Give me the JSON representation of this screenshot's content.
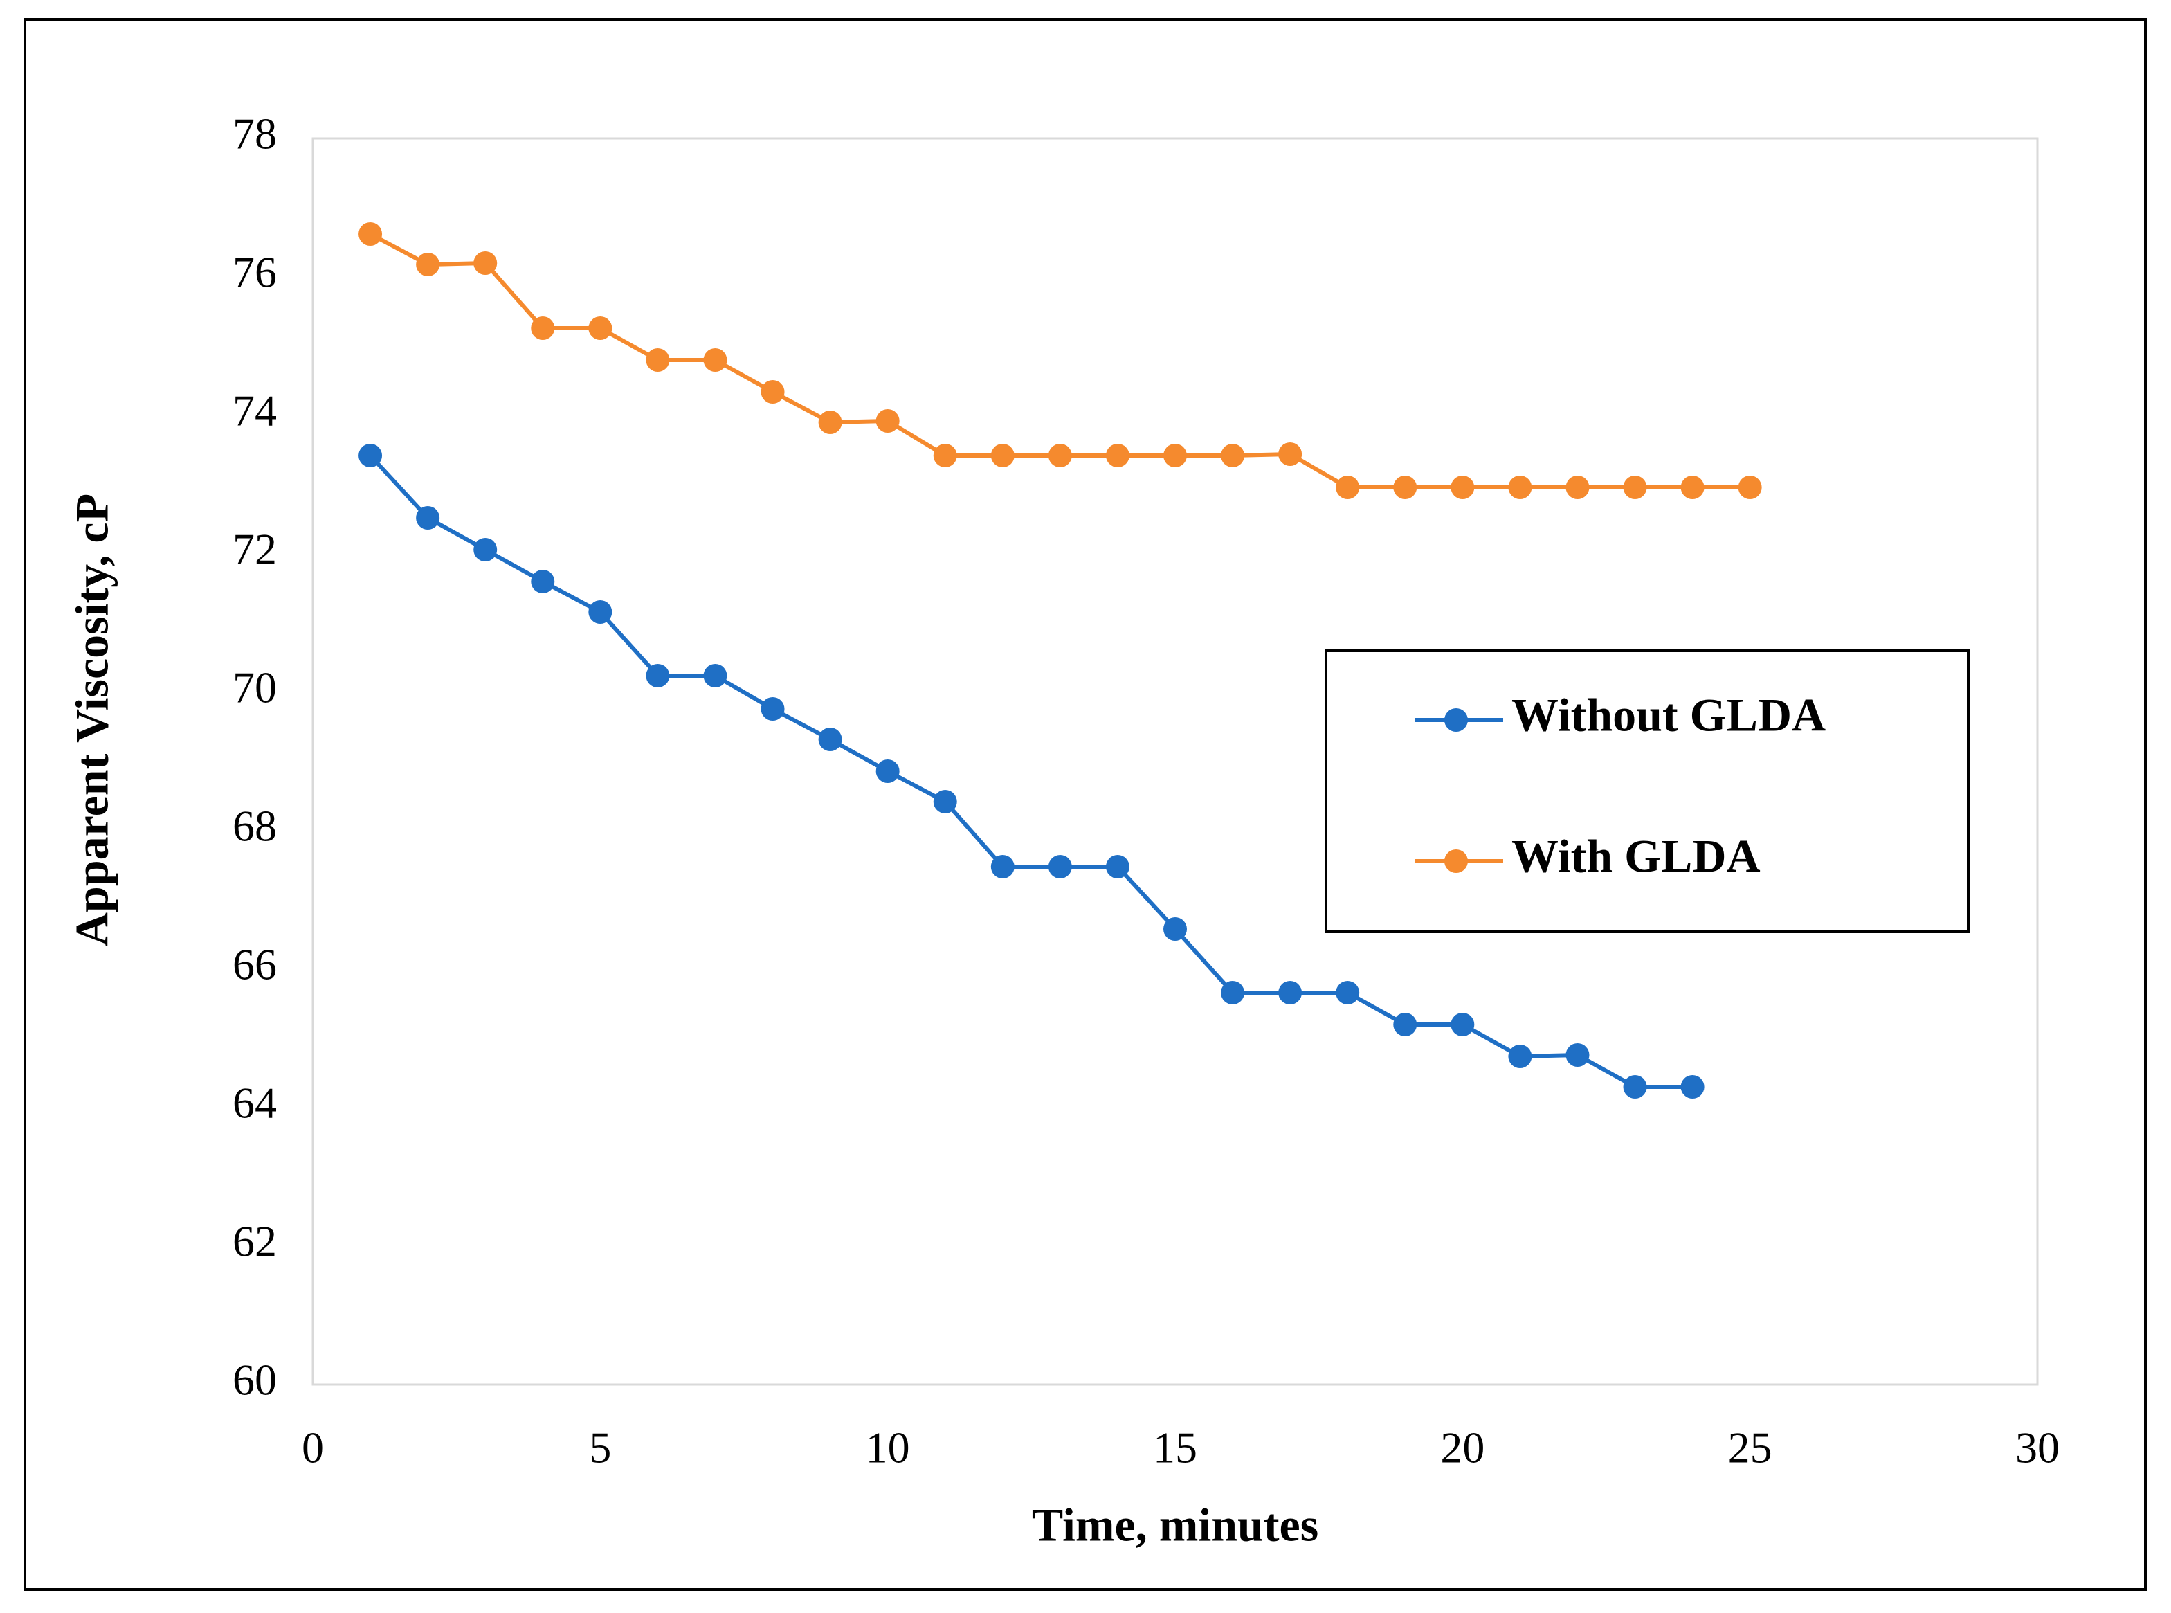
{
  "chart_data": {
    "type": "line",
    "xlabel": "Time, minutes",
    "ylabel": "Apparent Viscosity, cP",
    "series": [
      {
        "name": "Without GLDA",
        "color": "#1f6fc5",
        "x": [
          1,
          2,
          3,
          4,
          5,
          6,
          7,
          8,
          9,
          10,
          11,
          12,
          13,
          14,
          15,
          16,
          17,
          18,
          19,
          20,
          21,
          22,
          23,
          24
        ],
        "values": [
          73.42,
          72.52,
          72.06,
          71.6,
          71.16,
          70.24,
          70.24,
          69.76,
          69.32,
          68.86,
          68.42,
          67.48,
          67.48,
          67.48,
          66.58,
          65.66,
          65.66,
          65.66,
          65.2,
          65.2,
          64.74,
          64.76,
          64.3,
          64.3
        ]
      },
      {
        "name": "With GLDA",
        "color": "#f58a2e",
        "x": [
          1,
          2,
          3,
          4,
          5,
          6,
          7,
          8,
          9,
          10,
          11,
          12,
          13,
          14,
          15,
          16,
          17,
          18,
          19,
          20,
          21,
          22,
          23,
          24,
          25
        ],
        "values": [
          76.62,
          76.18,
          76.2,
          75.26,
          75.26,
          74.8,
          74.8,
          74.34,
          73.9,
          73.92,
          73.42,
          73.42,
          73.42,
          73.42,
          73.42,
          73.42,
          73.44,
          72.96,
          72.96,
          72.96,
          72.96,
          72.96,
          72.96,
          72.96,
          72.96
        ]
      }
    ],
    "xlim": [
      0,
      30
    ],
    "xticks": [
      0,
      5,
      10,
      15,
      20,
      25,
      30
    ],
    "ylim": [
      60,
      78
    ],
    "yticks": [
      60,
      62,
      64,
      66,
      68,
      70,
      72,
      74,
      76,
      78
    ],
    "grid": false,
    "legend": "right"
  }
}
